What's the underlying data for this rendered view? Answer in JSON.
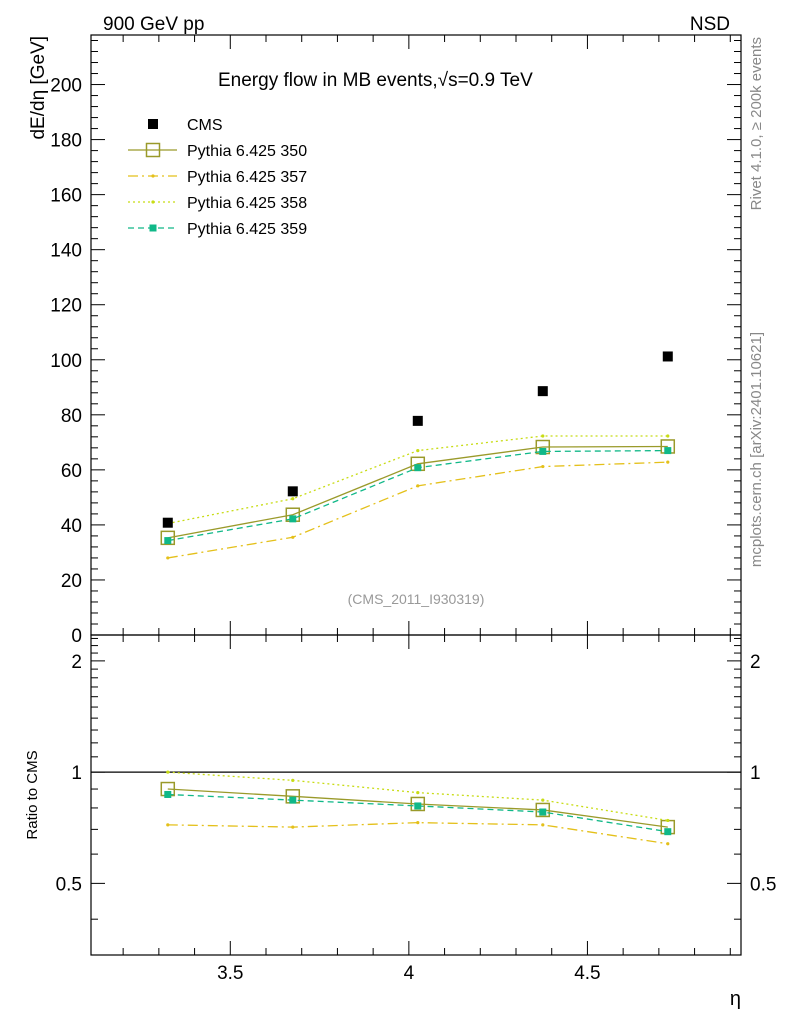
{
  "header": {
    "left": "900 GeV pp",
    "right": "NSD"
  },
  "chart_data": {
    "type": "line",
    "title": "Energy flow in MB events,",
    "title_math": "√s=0.9 TeV",
    "xlabel": "η",
    "ylabel": "dE/dη [GeV]",
    "ratio_ylabel": "Ratio to CMS",
    "watermark": "(CMS_2011_I930319)",
    "side_label_top": "Rivet 4.1.0, ≥ 200k events",
    "side_label_bottom": "mcplots.cern.ch [arXiv:2401.10621]",
    "xlim": [
      3.11,
      4.93
    ],
    "ylim": [
      0,
      218
    ],
    "ratio_ylim": [
      0.32,
      2.35
    ],
    "x_ticks": [
      3.5,
      4.0,
      4.5
    ],
    "x_tick_labels": [
      "3.5",
      "4",
      "4.5"
    ],
    "y_ticks": [
      0,
      20,
      40,
      60,
      80,
      100,
      120,
      140,
      160,
      180,
      200
    ],
    "y_tick_labels": [
      "0",
      "20",
      "40",
      "60",
      "80",
      "100",
      "120",
      "140",
      "160",
      "180",
      "200"
    ],
    "ratio_ticks": [
      0.5,
      1,
      2
    ],
    "ratio_tick_labels": [
      "0.5",
      "1",
      "2"
    ],
    "x": [
      3.325,
      3.675,
      4.025,
      4.375,
      4.725
    ],
    "series": [
      {
        "name": "CMS",
        "values": [
          40.8,
          52.2,
          77.8,
          88.6,
          101.2
        ],
        "color": "#000000",
        "style": "data"
      },
      {
        "name": "Pythia 6.425 350",
        "values": [
          35.3,
          43.7,
          62.2,
          68.3,
          68.5
        ],
        "color": "#9a9a2a",
        "style": "solid-open-square",
        "ratio": [
          0.9,
          0.86,
          0.82,
          0.79,
          0.71
        ]
      },
      {
        "name": "Pythia 6.425 357",
        "values": [
          28.0,
          35.5,
          54.2,
          61.2,
          62.8
        ],
        "color": "#e4c01a",
        "style": "dashdot",
        "ratio": [
          0.72,
          0.71,
          0.73,
          0.72,
          0.64
        ]
      },
      {
        "name": "Pythia 6.425 358",
        "values": [
          40.5,
          49.5,
          67.0,
          72.3,
          72.3
        ],
        "color": "#c8dc14",
        "style": "dotted",
        "ratio": [
          1.0,
          0.95,
          0.88,
          0.84,
          0.74
        ]
      },
      {
        "name": "Pythia 6.425 359",
        "values": [
          34.3,
          42.2,
          60.8,
          66.7,
          67.0
        ],
        "color": "#10b888",
        "style": "dashed-filled-square",
        "ratio": [
          0.87,
          0.84,
          0.81,
          0.78,
          0.69
        ]
      }
    ]
  }
}
